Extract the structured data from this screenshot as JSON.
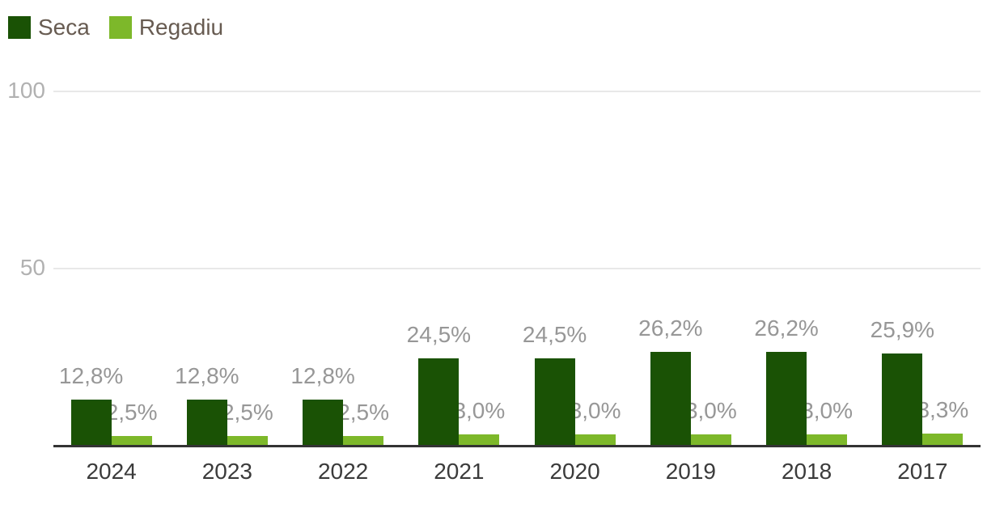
{
  "chart_data": {
    "type": "bar",
    "title": "",
    "xlabel": "",
    "ylabel": "",
    "categories": [
      "2024",
      "2023",
      "2022",
      "2021",
      "2020",
      "2019",
      "2018",
      "2017"
    ],
    "series": [
      {
        "name": "Seca",
        "color": "#1a5205",
        "values": [
          12.8,
          12.8,
          12.8,
          24.5,
          24.5,
          26.2,
          26.2,
          25.9
        ],
        "data_labels": [
          "12,8%",
          "12,8%",
          "12,8%",
          "24,5%",
          "24,5%",
          "26,2%",
          "26,2%",
          "25,9%"
        ]
      },
      {
        "name": "Regadiu",
        "color": "#7db82a",
        "values": [
          2.5,
          2.5,
          2.5,
          3.0,
          3.0,
          3.0,
          3.0,
          3.3
        ],
        "data_labels": [
          "2,5%",
          "2,5%",
          "2,5%",
          "3,0%",
          "3,0%",
          "3,0%",
          "3,0%",
          "3,3%"
        ]
      }
    ],
    "ylim": [
      0,
      100
    ],
    "yticks": [
      50,
      100
    ],
    "grid": true,
    "legend_position": "top-left",
    "colors": {
      "background": "#ffffff",
      "gridline": "#e8e8e8",
      "axis_line": "#333333",
      "ytick_label": "#b1b1b1",
      "value_label": "#979797",
      "category_label": "#3b3b3b",
      "legend_text": "#675b51"
    }
  }
}
